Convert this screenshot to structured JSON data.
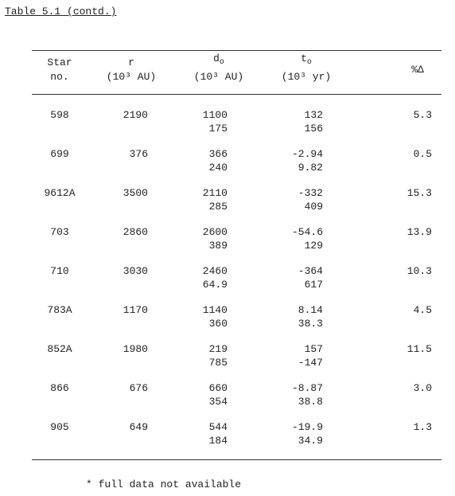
{
  "title": "Table 5.1 (contd.)",
  "header": {
    "star": [
      "Star",
      "no."
    ],
    "r": [
      "r",
      "(10³ AU)"
    ],
    "d": {
      "main": "d",
      "sub": "o",
      "unit": "(10³ AU)"
    },
    "t": {
      "main": "t",
      "sub": "o",
      "unit": "(10³ yr)"
    },
    "pct": "%Δ"
  },
  "rows": [
    {
      "star": "598",
      "r": "2190",
      "d": [
        "1100",
        "175"
      ],
      "t": [
        "132",
        "156"
      ],
      "pct": "5.3"
    },
    {
      "star": "699",
      "r": "376",
      "d": [
        "366",
        "240"
      ],
      "t": [
        "-2.94",
        "9.82"
      ],
      "pct": "0.5"
    },
    {
      "star": "9612A",
      "r": "3500",
      "d": [
        "2110",
        "285"
      ],
      "t": [
        "-332",
        "409"
      ],
      "pct": "15.3"
    },
    {
      "star": "703",
      "r": "2860",
      "d": [
        "2600",
        "389"
      ],
      "t": [
        "-54.6",
        "129"
      ],
      "pct": "13.9"
    },
    {
      "star": "710",
      "r": "3030",
      "d": [
        "2460",
        "64.9"
      ],
      "t": [
        "-364",
        "617"
      ],
      "pct": "10.3"
    },
    {
      "star": "783A",
      "r": "1170",
      "d": [
        "1140",
        "360"
      ],
      "t": [
        "8.14",
        "38.3"
      ],
      "pct": "4.5"
    },
    {
      "star": "852A",
      "r": "1980",
      "d": [
        "219",
        "785"
      ],
      "t": [
        "157",
        "-147"
      ],
      "pct": "11.5"
    },
    {
      "star": "866",
      "r": "676",
      "d": [
        "660",
        "354"
      ],
      "t": [
        "-8.87",
        "38.8"
      ],
      "pct": "3.0"
    },
    {
      "star": "905",
      "r": "649",
      "d": [
        "544",
        "184"
      ],
      "t": [
        "-19.9",
        "34.9"
      ],
      "pct": "1.3"
    }
  ],
  "footnote": "* full data not available"
}
